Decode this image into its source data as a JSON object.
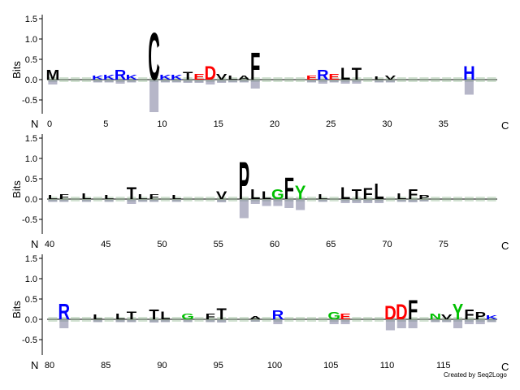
{
  "credit": "Created by Seq2Logo",
  "chart_data": {
    "type": "sequence-logo",
    "y_axis_label": "Bits",
    "n_terminus_label": "N",
    "c_terminus_label": "C",
    "ylim": [
      -0.9,
      1.6
    ],
    "yticks": [
      -0.5,
      0.0,
      0.5,
      1.0,
      1.5
    ],
    "ytick_labels": [
      "-0.5",
      "0.0",
      "0.5",
      "1.0",
      "1.5"
    ],
    "grid": false,
    "colors": {
      "hydrophobic": "#000000",
      "basic": "#0000ff",
      "acidic": "#ff0000",
      "polar": "#00c000",
      "other": "#800080"
    },
    "rows": [
      {
        "start": 0,
        "end": 39,
        "xticks": [
          0,
          5,
          10,
          15,
          20,
          25,
          30,
          35
        ],
        "positions": [
          {
            "pos": 0,
            "letters": [
              {
                "aa": "M",
                "bits": 0.25
              }
            ],
            "neg": 0.1
          },
          {
            "pos": 4,
            "letters": [
              {
                "aa": "K",
                "bits": 0.1
              }
            ],
            "neg": 0.05
          },
          {
            "pos": 5,
            "letters": [
              {
                "aa": "K",
                "bits": 0.12
              }
            ],
            "neg": 0.05
          },
          {
            "pos": 6,
            "letters": [
              {
                "aa": "R",
                "bits": 0.25
              }
            ],
            "neg": 0.08
          },
          {
            "pos": 7,
            "letters": [
              {
                "aa": "K",
                "bits": 0.12
              }
            ],
            "neg": 0.05
          },
          {
            "pos": 9,
            "letters": [
              {
                "aa": "C",
                "bits": 1.2
              }
            ],
            "neg": 0.78
          },
          {
            "pos": 10,
            "letters": [
              {
                "aa": "K",
                "bits": 0.12
              }
            ],
            "neg": 0.05
          },
          {
            "pos": 11,
            "letters": [
              {
                "aa": "K",
                "bits": 0.12
              }
            ],
            "neg": 0.05
          },
          {
            "pos": 12,
            "letters": [
              {
                "aa": "T",
                "bits": 0.2
              }
            ],
            "neg": 0.06
          },
          {
            "pos": 13,
            "letters": [
              {
                "aa": "E",
                "bits": 0.15
              }
            ],
            "neg": 0.06
          },
          {
            "pos": 14,
            "letters": [
              {
                "aa": "D",
                "bits": 0.35
              }
            ],
            "neg": 0.1
          },
          {
            "pos": 15,
            "letters": [
              {
                "aa": "V",
                "bits": 0.15
              }
            ],
            "neg": 0.06
          },
          {
            "pos": 16,
            "letters": [
              {
                "aa": "L",
                "bits": 0.1
              }
            ],
            "neg": 0.05
          },
          {
            "pos": 17,
            "letters": [
              {
                "aa": "A",
                "bits": 0.1
              }
            ],
            "neg": 0.05
          },
          {
            "pos": 18,
            "letters": [
              {
                "aa": "F",
                "bits": 0.7
              }
            ],
            "neg": 0.2
          },
          {
            "pos": 23,
            "letters": [
              {
                "aa": "E",
                "bits": 0.1
              }
            ],
            "neg": 0.05
          },
          {
            "pos": 24,
            "letters": [
              {
                "aa": "R",
                "bits": 0.25
              }
            ],
            "neg": 0.08
          },
          {
            "pos": 25,
            "letters": [
              {
                "aa": "E",
                "bits": 0.15
              }
            ],
            "neg": 0.05
          },
          {
            "pos": 26,
            "letters": [
              {
                "aa": "L",
                "bits": 0.3
              }
            ],
            "neg": 0.08
          },
          {
            "pos": 27,
            "letters": [
              {
                "aa": "T",
                "bits": 0.3
              }
            ],
            "neg": 0.08
          },
          {
            "pos": 29,
            "letters": [
              {
                "aa": "L",
                "bits": 0.08
              }
            ],
            "neg": 0.05
          },
          {
            "pos": 30,
            "letters": [
              {
                "aa": "V",
                "bits": 0.1
              }
            ],
            "neg": 0.05
          },
          {
            "pos": 37,
            "letters": [
              {
                "aa": "H",
                "bits": 0.35
              }
            ],
            "neg": 0.35
          }
        ]
      },
      {
        "start": 40,
        "end": 79,
        "xticks": [
          40,
          45,
          50,
          55,
          60,
          65,
          70,
          75
        ],
        "positions": [
          {
            "pos": 40,
            "letters": [
              {
                "aa": "L",
                "bits": 0.1
              }
            ],
            "neg": 0.05
          },
          {
            "pos": 41,
            "letters": [
              {
                "aa": "F",
                "bits": 0.12
              }
            ],
            "neg": 0.05
          },
          {
            "pos": 43,
            "letters": [
              {
                "aa": "L",
                "bits": 0.15
              }
            ],
            "neg": 0.05
          },
          {
            "pos": 45,
            "letters": [
              {
                "aa": "L",
                "bits": 0.1
              }
            ],
            "neg": 0.05
          },
          {
            "pos": 47,
            "letters": [
              {
                "aa": "T",
                "bits": 0.3
              }
            ],
            "neg": 0.1
          },
          {
            "pos": 48,
            "letters": [
              {
                "aa": "L",
                "bits": 0.12
              }
            ],
            "neg": 0.05
          },
          {
            "pos": 49,
            "letters": [
              {
                "aa": "F",
                "bits": 0.12
              }
            ],
            "neg": 0.05
          },
          {
            "pos": 51,
            "letters": [
              {
                "aa": "L",
                "bits": 0.1
              }
            ],
            "neg": 0.05
          },
          {
            "pos": 55,
            "letters": [
              {
                "aa": "V",
                "bits": 0.2
              }
            ],
            "neg": 0.06
          },
          {
            "pos": 57,
            "letters": [
              {
                "aa": "P",
                "bits": 0.95
              }
            ],
            "neg": 0.45
          },
          {
            "pos": 58,
            "letters": [
              {
                "aa": "L",
                "bits": 0.25
              }
            ],
            "neg": 0.1
          },
          {
            "pos": 59,
            "letters": [
              {
                "aa": "L",
                "bits": 0.2
              }
            ],
            "neg": 0.15
          },
          {
            "pos": 60,
            "letters": [
              {
                "aa": "G",
                "bits": 0.25
              }
            ],
            "neg": 0.15
          },
          {
            "pos": 61,
            "letters": [
              {
                "aa": "F",
                "bits": 0.55
              }
            ],
            "neg": 0.2
          },
          {
            "pos": 62,
            "letters": [
              {
                "aa": "Y",
                "bits": 0.35
              }
            ],
            "neg": 0.25
          },
          {
            "pos": 64,
            "letters": [
              {
                "aa": "L",
                "bits": 0.12
              }
            ],
            "neg": 0.05
          },
          {
            "pos": 66,
            "letters": [
              {
                "aa": "L",
                "bits": 0.3
              }
            ],
            "neg": 0.08
          },
          {
            "pos": 67,
            "letters": [
              {
                "aa": "T",
                "bits": 0.25
              }
            ],
            "neg": 0.08
          },
          {
            "pos": 68,
            "letters": [
              {
                "aa": "F",
                "bits": 0.28
              }
            ],
            "neg": 0.08
          },
          {
            "pos": 69,
            "letters": [
              {
                "aa": "L",
                "bits": 0.4
              }
            ],
            "neg": 0.08
          },
          {
            "pos": 71,
            "letters": [
              {
                "aa": "L",
                "bits": 0.15
              }
            ],
            "neg": 0.05
          },
          {
            "pos": 72,
            "letters": [
              {
                "aa": "F",
                "bits": 0.25
              }
            ],
            "neg": 0.06
          },
          {
            "pos": 73,
            "letters": [
              {
                "aa": "P",
                "bits": 0.1
              }
            ],
            "neg": 0.04
          }
        ]
      },
      {
        "start": 80,
        "end": 119,
        "xticks": [
          80,
          85,
          90,
          95,
          100,
          105,
          110,
          115
        ],
        "positions": [
          {
            "pos": 81,
            "letters": [
              {
                "aa": "R",
                "bits": 0.4
              }
            ],
            "neg": 0.2
          },
          {
            "pos": 84,
            "letters": [
              {
                "aa": "L",
                "bits": 0.12
              }
            ],
            "neg": 0.05
          },
          {
            "pos": 86,
            "letters": [
              {
                "aa": "L",
                "bits": 0.15
              }
            ],
            "neg": 0.05
          },
          {
            "pos": 87,
            "letters": [
              {
                "aa": "T",
                "bits": 0.2
              }
            ],
            "neg": 0.05
          },
          {
            "pos": 89,
            "letters": [
              {
                "aa": "T",
                "bits": 0.25
              }
            ],
            "neg": 0.06
          },
          {
            "pos": 90,
            "letters": [
              {
                "aa": "L",
                "bits": 0.2
              }
            ],
            "neg": 0.05
          },
          {
            "pos": 92,
            "letters": [
              {
                "aa": "G",
                "bits": 0.15
              }
            ],
            "neg": 0.05
          },
          {
            "pos": 94,
            "letters": [
              {
                "aa": "F",
                "bits": 0.15
              }
            ],
            "neg": 0.05
          },
          {
            "pos": 95,
            "letters": [
              {
                "aa": "T",
                "bits": 0.28
              }
            ],
            "neg": 0.06
          },
          {
            "pos": 98,
            "letters": [
              {
                "aa": "A",
                "bits": 0.08
              }
            ],
            "neg": 0.04
          },
          {
            "pos": 100,
            "letters": [
              {
                "aa": "R",
                "bits": 0.22
              }
            ],
            "neg": 0.1
          },
          {
            "pos": 105,
            "letters": [
              {
                "aa": "G",
                "bits": 0.18
              }
            ],
            "neg": 0.1
          },
          {
            "pos": 106,
            "letters": [
              {
                "aa": "E",
                "bits": 0.15
              }
            ],
            "neg": 0.1
          },
          {
            "pos": 110,
            "letters": [
              {
                "aa": "D",
                "bits": 0.35
              }
            ],
            "neg": 0.25
          },
          {
            "pos": 111,
            "letters": [
              {
                "aa": "D",
                "bits": 0.38
              }
            ],
            "neg": 0.2
          },
          {
            "pos": 112,
            "letters": [
              {
                "aa": "F",
                "bits": 0.5
              }
            ],
            "neg": 0.2
          },
          {
            "pos": 114,
            "letters": [
              {
                "aa": "N",
                "bits": 0.15
              }
            ],
            "neg": 0.05
          },
          {
            "pos": 115,
            "letters": [
              {
                "aa": "V",
                "bits": 0.12
              }
            ],
            "neg": 0.05
          },
          {
            "pos": 116,
            "letters": [
              {
                "aa": "Y",
                "bits": 0.4
              }
            ],
            "neg": 0.2
          },
          {
            "pos": 117,
            "letters": [
              {
                "aa": "F",
                "bits": 0.25
              }
            ],
            "neg": 0.1
          },
          {
            "pos": 118,
            "letters": [
              {
                "aa": "P",
                "bits": 0.18
              }
            ],
            "neg": 0.1
          },
          {
            "pos": 119,
            "letters": [
              {
                "aa": "K",
                "bits": 0.1
              }
            ],
            "neg": 0.05
          }
        ]
      }
    ]
  }
}
